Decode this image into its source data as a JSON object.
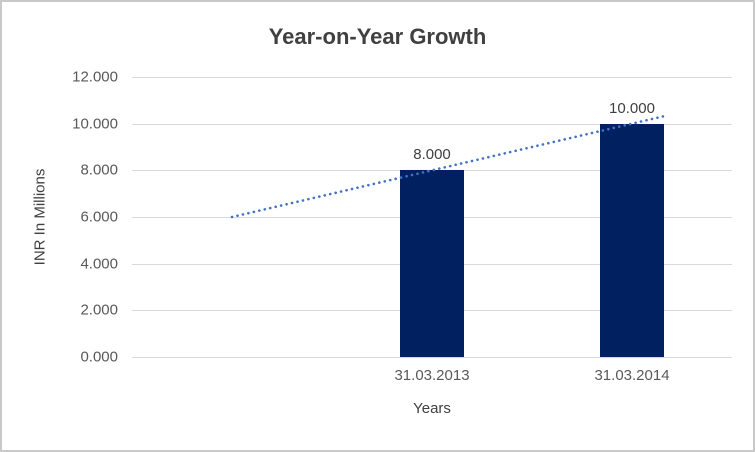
{
  "chart_data": {
    "type": "bar",
    "title": "Year-on-Year Growth",
    "xlabel": "Years",
    "ylabel": "INR In Millions",
    "categories": [
      "31.03.2013",
      "31.03.2014"
    ],
    "values": [
      8000,
      10000
    ],
    "data_labels": [
      "8.000",
      "10.000"
    ],
    "y_ticks": [
      "0.000",
      "2.000",
      "4.000",
      "6.000",
      "8.000",
      "10.000",
      "12.000"
    ],
    "ylim": [
      0,
      12000
    ],
    "grid": true,
    "legend": "none",
    "bar_color": "#002060",
    "trendline": {
      "type": "linear",
      "style": "dotted",
      "color": "#4472C4",
      "extends_back_to_value": 6000,
      "end_value": 10000
    },
    "colors": {
      "title_text": "#404040",
      "axis_text": "#595959",
      "gridline": "#D9D9D9",
      "border": "#C9C9C9",
      "background": "#FFFFFF"
    }
  }
}
